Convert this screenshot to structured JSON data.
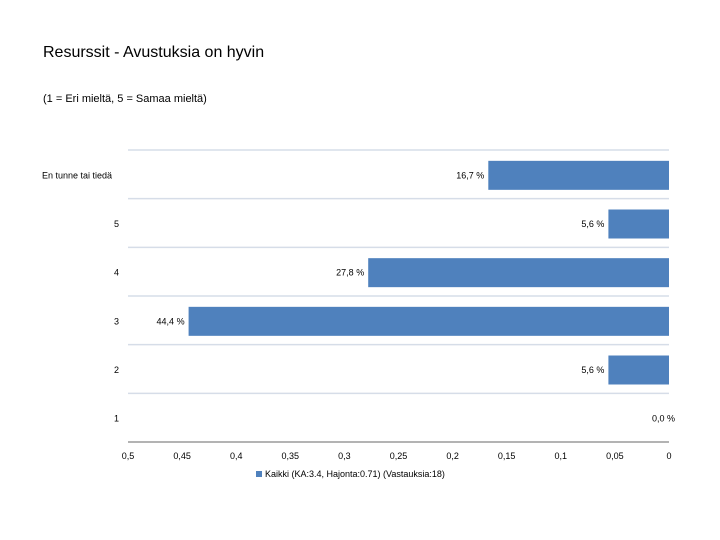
{
  "header": {
    "title": "Resurssit - Avustuksia on hyvin",
    "subtitle": "(1 = Eri mieltä, 5 = Samaa mieltä)"
  },
  "chart_data": {
    "type": "bar",
    "orientation": "horizontal",
    "x_reversed": true,
    "categories": [
      "En tunne tai tiedä",
      "5",
      "4",
      "3",
      "2",
      "1"
    ],
    "series": [
      {
        "name": "Kaikki (KA:3.4, Hajonta:0.71) (Vastauksia:18)",
        "color": "#4f81bd",
        "values": [
          0.167,
          0.056,
          0.278,
          0.444,
          0.056,
          0.0
        ],
        "labels": [
          "16,7 %",
          "5,6 %",
          "27,8 %",
          "44,4 %",
          "5,6 %",
          "0,0 %"
        ]
      }
    ],
    "xlim": [
      0.5,
      0
    ],
    "x_ticks": [
      0.5,
      0.45,
      0.4,
      0.35,
      0.3,
      0.25,
      0.2,
      0.15,
      0.1,
      0.05,
      0
    ],
    "x_tick_labels": [
      "0,5",
      "0,45",
      "0,4",
      "0,35",
      "0,3",
      "0,25",
      "0,2",
      "0,15",
      "0,1",
      "0,05",
      "0"
    ],
    "legend_position": "bottom"
  }
}
